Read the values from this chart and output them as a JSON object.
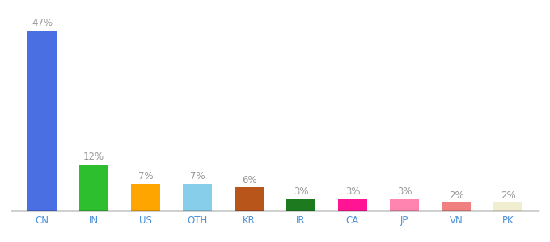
{
  "categories": [
    "CN",
    "IN",
    "US",
    "OTH",
    "KR",
    "IR",
    "CA",
    "JP",
    "VN",
    "PK"
  ],
  "values": [
    47,
    12,
    7,
    7,
    6,
    3,
    3,
    3,
    2,
    2
  ],
  "bar_colors": [
    "#4A6FE3",
    "#2EBF2E",
    "#FFA500",
    "#87CEEB",
    "#B8551A",
    "#1E7A1E",
    "#FF1493",
    "#FF85B0",
    "#F08080",
    "#F0EDD0"
  ],
  "label_color": "#999999",
  "tick_color": "#4A90D9",
  "label_fontsize": 8.5,
  "tick_fontsize": 8.5,
  "bar_width": 0.55,
  "ylim": [
    0,
    53
  ],
  "figsize": [
    6.8,
    3.0
  ],
  "dpi": 100
}
